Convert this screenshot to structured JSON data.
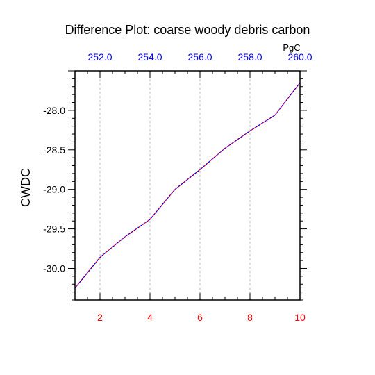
{
  "chart_data": {
    "type": "line",
    "title": "Difference Plot: coarse woody debris carbon",
    "ylabel": "CWDC",
    "top_axis_unit": "PgC",
    "x": [
      1,
      2,
      3,
      4,
      5,
      6,
      7,
      8,
      9,
      10
    ],
    "series": [
      {
        "values": [
          -30.25,
          -29.86,
          -29.6,
          -29.38,
          -29.0,
          -28.75,
          -28.48,
          -28.26,
          -28.06,
          -27.65
        ]
      }
    ],
    "xlim": [
      1,
      10
    ],
    "ylim": [
      -30.4,
      -27.5
    ],
    "bottom_ticks": [
      2,
      4,
      6,
      8,
      10
    ],
    "bottom_tick_labels": [
      "2",
      "4",
      "6",
      "8",
      "10"
    ],
    "top_ticks": [
      252.0,
      254.0,
      256.0,
      258.0,
      260.0
    ],
    "top_tick_labels": [
      "252.0",
      "254.0",
      "256.0",
      "258.0",
      "260.0"
    ],
    "top_axis_offset": 250.0,
    "left_ticks": [
      -30.0,
      -29.5,
      -29.0,
      -28.5,
      -28.0
    ],
    "left_tick_labels": [
      "-30.0",
      "-29.5",
      "-29.0",
      "-28.5",
      "-28.0"
    ],
    "grid": "vertical dashed",
    "colors": {
      "bottom_tick_labels": "#ff0000",
      "top_tick_labels": "#0000ff",
      "line_primary": "#ff0000",
      "line_overlay": "#0000ff",
      "grid": "#aaaaaa"
    }
  }
}
